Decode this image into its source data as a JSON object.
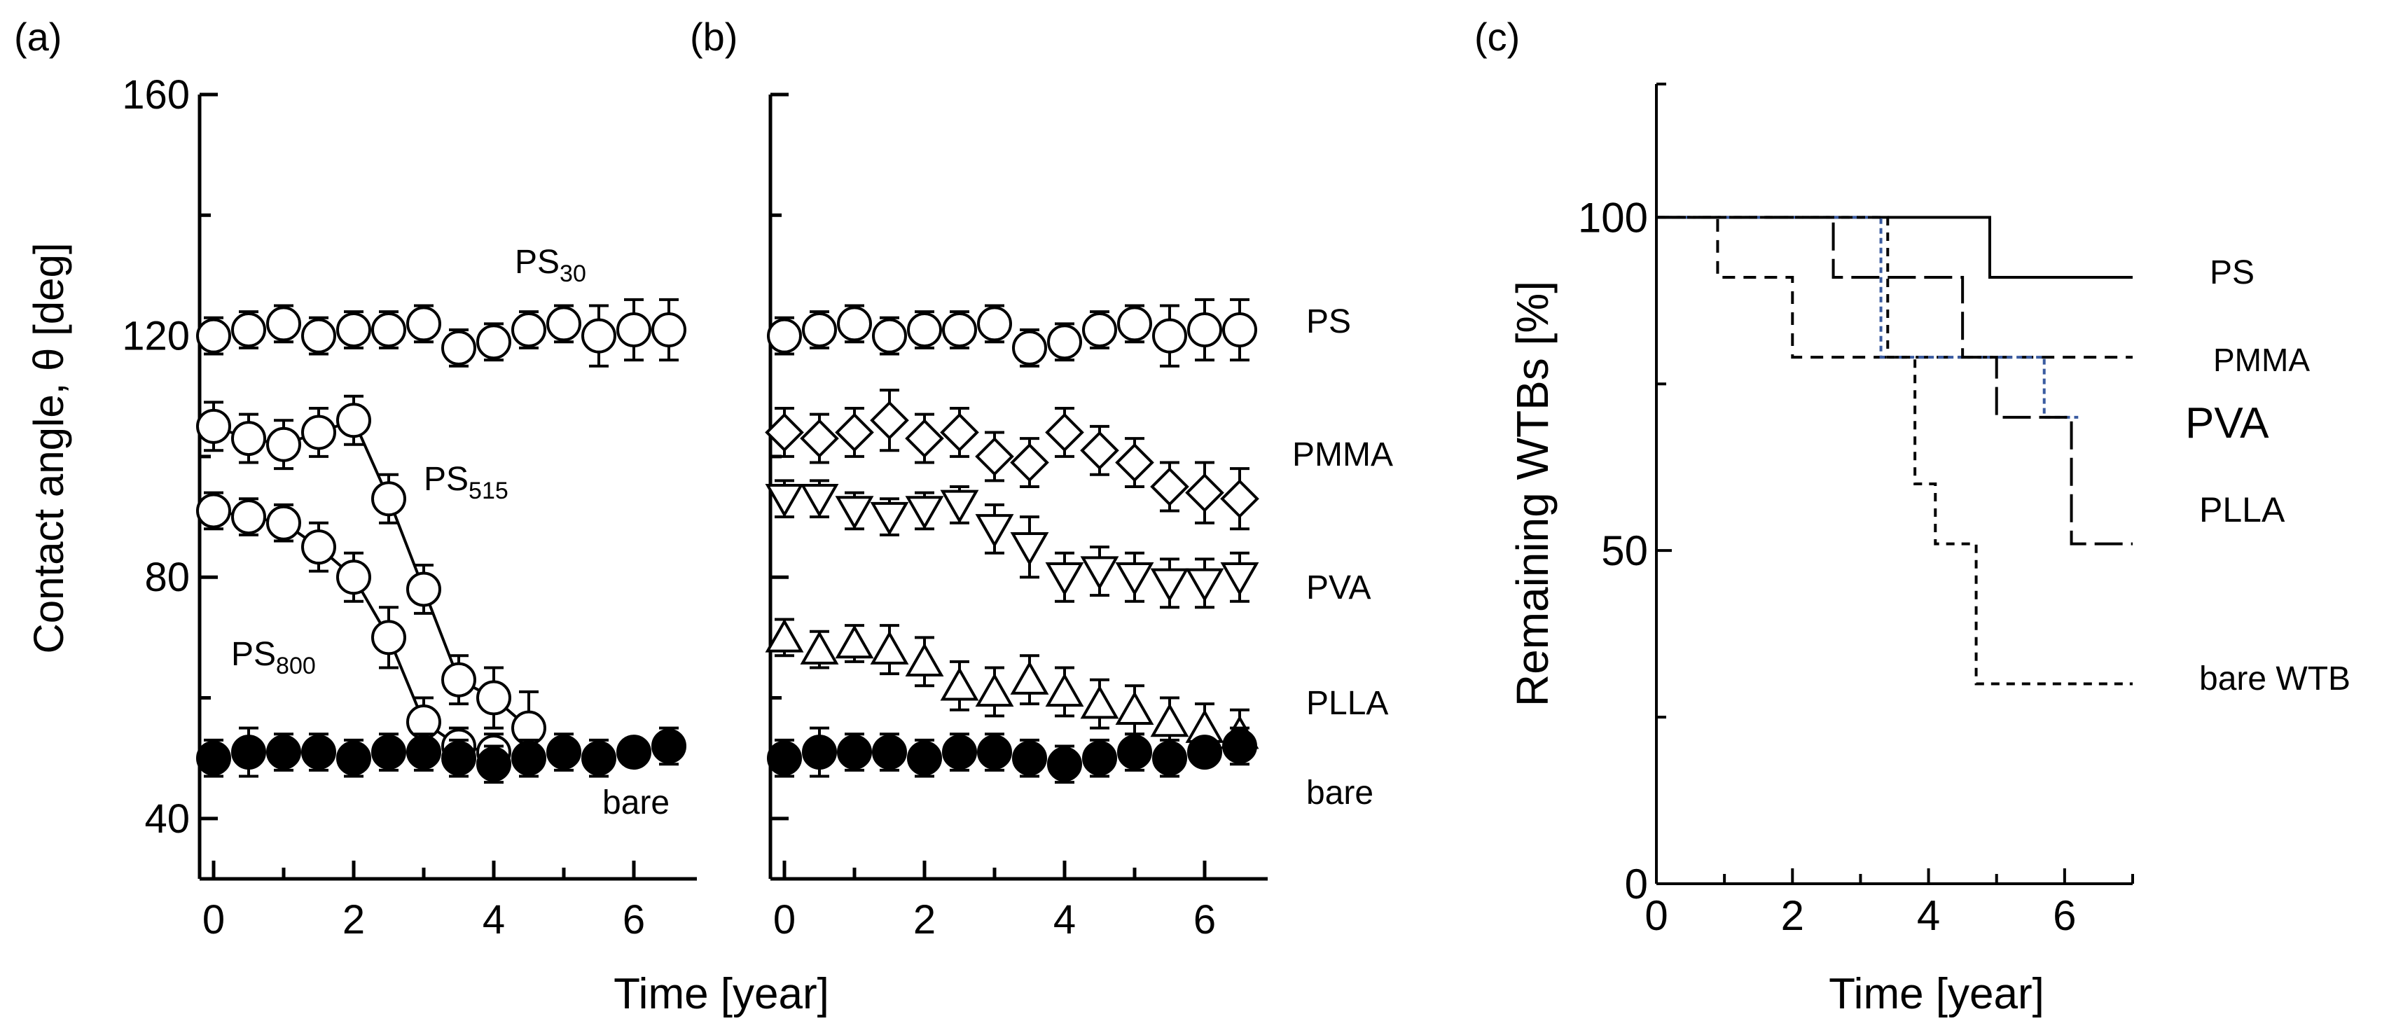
{
  "figure": {
    "xlabel_ab": "Time [year]",
    "xlabel_c": "Time [year]"
  },
  "chart_data": [
    {
      "panel": "(a)",
      "type": "scatter",
      "title": "",
      "ylabel": "Contact angle, θ [deg]",
      "xlabel": "Time [year]",
      "xlim": [
        -0.2,
        6.9
      ],
      "ylim": [
        30,
        160
      ],
      "xticks": [
        0,
        2,
        4,
        6
      ],
      "yticks": [
        40,
        80,
        120,
        160
      ],
      "series": [
        {
          "name": "PS30",
          "label_base": "PS",
          "label_sub": "30",
          "marker": "open-circle",
          "x": [
            0,
            0.5,
            1,
            1.5,
            2,
            2.5,
            3,
            3.5,
            4,
            4.5,
            5,
            5.5,
            6,
            6.5
          ],
          "y": [
            120,
            121,
            122,
            120,
            121,
            121,
            122,
            118,
            119,
            121,
            122,
            120,
            121,
            121
          ],
          "err": [
            3,
            3,
            3,
            3,
            3,
            3,
            3,
            3,
            3,
            3,
            3,
            5,
            5,
            5
          ]
        },
        {
          "name": "PS515",
          "label_base": "PS",
          "label_sub": "515",
          "marker": "open-circle",
          "line": true,
          "x": [
            0,
            0.5,
            1,
            1.5,
            2,
            2.5,
            3,
            3.5,
            4,
            4.5
          ],
          "y": [
            105,
            103,
            102,
            104,
            106,
            93,
            78,
            63,
            60,
            55
          ],
          "err": [
            4,
            4,
            4,
            4,
            4,
            4,
            4,
            4,
            5,
            6
          ]
        },
        {
          "name": "PS800",
          "label_base": "PS",
          "label_sub": "800",
          "marker": "open-circle",
          "line": true,
          "x": [
            0,
            0.5,
            1,
            1.5,
            2,
            2.5,
            3,
            3.5,
            4
          ],
          "y": [
            91,
            90,
            89,
            85,
            80,
            70,
            56,
            52,
            51
          ],
          "err": [
            3,
            3,
            3,
            4,
            4,
            5,
            4,
            3,
            3
          ]
        },
        {
          "name": "bare",
          "label_base": "bare",
          "label_sub": "",
          "marker": "filled-circle",
          "x": [
            0,
            0.5,
            1,
            1.5,
            2,
            2.5,
            3,
            3.5,
            4,
            4.5,
            5,
            5.5,
            6,
            6.5
          ],
          "y": [
            50,
            51,
            51,
            51,
            50,
            51,
            51,
            50,
            49,
            50,
            51,
            50,
            51,
            52
          ],
          "err": [
            3,
            4,
            3,
            3,
            3,
            3,
            3,
            3,
            3,
            3,
            3,
            3,
            2,
            3
          ]
        }
      ]
    },
    {
      "panel": "(b)",
      "type": "scatter",
      "title": "",
      "ylabel": "",
      "xlabel": "Time [year]",
      "xlim": [
        -0.2,
        6.9
      ],
      "ylim": [
        30,
        160
      ],
      "xticks": [
        0,
        2,
        4,
        6
      ],
      "yticks": [
        40,
        80,
        120,
        160
      ],
      "series": [
        {
          "name": "PS",
          "label": "PS",
          "marker": "open-circle",
          "x": [
            0,
            0.5,
            1,
            1.5,
            2,
            2.5,
            3,
            3.5,
            4,
            4.5,
            5,
            5.5,
            6,
            6.5
          ],
          "y": [
            120,
            121,
            122,
            120,
            121,
            121,
            122,
            118,
            119,
            121,
            122,
            120,
            121,
            121
          ],
          "err": [
            3,
            3,
            3,
            3,
            3,
            3,
            3,
            3,
            3,
            3,
            3,
            5,
            5,
            5
          ]
        },
        {
          "name": "PMMA",
          "label": "PMMA",
          "marker": "open-diamond",
          "x": [
            0,
            0.5,
            1,
            1.5,
            2,
            2.5,
            3,
            3.5,
            4,
            4.5,
            5,
            5.5,
            6,
            6.5
          ],
          "y": [
            104,
            103,
            104,
            106,
            103,
            104,
            100,
            99,
            104,
            101,
            99,
            95,
            94,
            93
          ],
          "err": [
            4,
            4,
            4,
            5,
            4,
            4,
            4,
            4,
            4,
            4,
            4,
            4,
            5,
            5
          ]
        },
        {
          "name": "PVA",
          "label": "PVA",
          "marker": "open-triangle-down",
          "x": [
            0,
            0.5,
            1,
            1.5,
            2,
            2.5,
            3,
            3.5,
            4,
            4.5,
            5,
            5.5,
            6,
            6.5
          ],
          "y": [
            93,
            93,
            91,
            90,
            91,
            92,
            88,
            85,
            80,
            81,
            80,
            79,
            79,
            80
          ],
          "err": [
            3,
            3,
            3,
            3,
            3,
            3,
            4,
            5,
            4,
            4,
            4,
            4,
            4,
            4
          ]
        },
        {
          "name": "PLLA",
          "label": "PLLA",
          "marker": "open-triangle-up",
          "x": [
            0,
            0.5,
            1,
            1.5,
            2,
            2.5,
            3,
            3.5,
            4,
            4.5,
            5,
            5.5,
            6,
            6.5
          ],
          "y": [
            70,
            68,
            69,
            68,
            66,
            62,
            61,
            63,
            61,
            59,
            58,
            56,
            55,
            54
          ],
          "err": [
            3,
            3,
            3,
            4,
            4,
            4,
            4,
            4,
            4,
            4,
            4,
            4,
            4,
            4
          ]
        },
        {
          "name": "bare",
          "label": "bare",
          "marker": "filled-circle",
          "x": [
            0,
            0.5,
            1,
            1.5,
            2,
            2.5,
            3,
            3.5,
            4,
            4.5,
            5,
            5.5,
            6,
            6.5
          ],
          "y": [
            50,
            51,
            51,
            51,
            50,
            51,
            51,
            50,
            49,
            50,
            51,
            50,
            51,
            52
          ],
          "err": [
            3,
            4,
            3,
            3,
            3,
            3,
            3,
            3,
            3,
            3,
            3,
            3,
            2,
            3
          ]
        }
      ]
    },
    {
      "panel": "(c)",
      "type": "line",
      "subtype": "step (survival curve)",
      "title": "",
      "ylabel": "Remaining WTBs [%]",
      "xlabel": "Time [year]",
      "xlim": [
        0,
        7
      ],
      "ylim": [
        0,
        120
      ],
      "xticks": [
        0,
        2,
        4,
        6
      ],
      "xticks_minor": [
        1,
        3,
        5,
        7
      ],
      "yticks": [
        0,
        50,
        100
      ],
      "yticks_minor": [
        25,
        75,
        120
      ],
      "series": [
        {
          "name": "PS",
          "label": "PS",
          "style": "solid",
          "color": "#000000",
          "x": [
            0,
            4.9,
            4.9,
            7
          ],
          "y": [
            100,
            100,
            91,
            91
          ]
        },
        {
          "name": "PMMA",
          "label": "PMMA",
          "style": "dashed",
          "color": "#000000",
          "x": [
            0,
            0.9,
            0.9,
            2.0,
            2.0,
            7
          ],
          "y": [
            100,
            100,
            91,
            91,
            79,
            79
          ]
        },
        {
          "name": "PVA",
          "label": "PVA",
          "style": "dotted",
          "color": "#3a5ba0",
          "x": [
            0,
            3.3,
            3.3,
            5.7,
            5.7,
            6.2
          ],
          "y": [
            100,
            100,
            79,
            79,
            70,
            70
          ]
        },
        {
          "name": "PLLA",
          "label": "PLLA",
          "style": "long-dash",
          "color": "#000000",
          "x": [
            0,
            2.6,
            2.6,
            4.5,
            4.5,
            5.0,
            5.0,
            6.1,
            6.1,
            7
          ],
          "y": [
            100,
            100,
            91,
            91,
            79,
            79,
            70,
            70,
            51,
            51
          ]
        },
        {
          "name": "bare WTB",
          "label": "bare WTB",
          "style": "short-dash",
          "color": "#000000",
          "x": [
            0,
            3.4,
            3.4,
            3.8,
            3.8,
            4.1,
            4.1,
            4.7,
            4.7,
            7
          ],
          "y": [
            100,
            100,
            79,
            79,
            60,
            60,
            51,
            51,
            30,
            30
          ]
        }
      ]
    }
  ]
}
